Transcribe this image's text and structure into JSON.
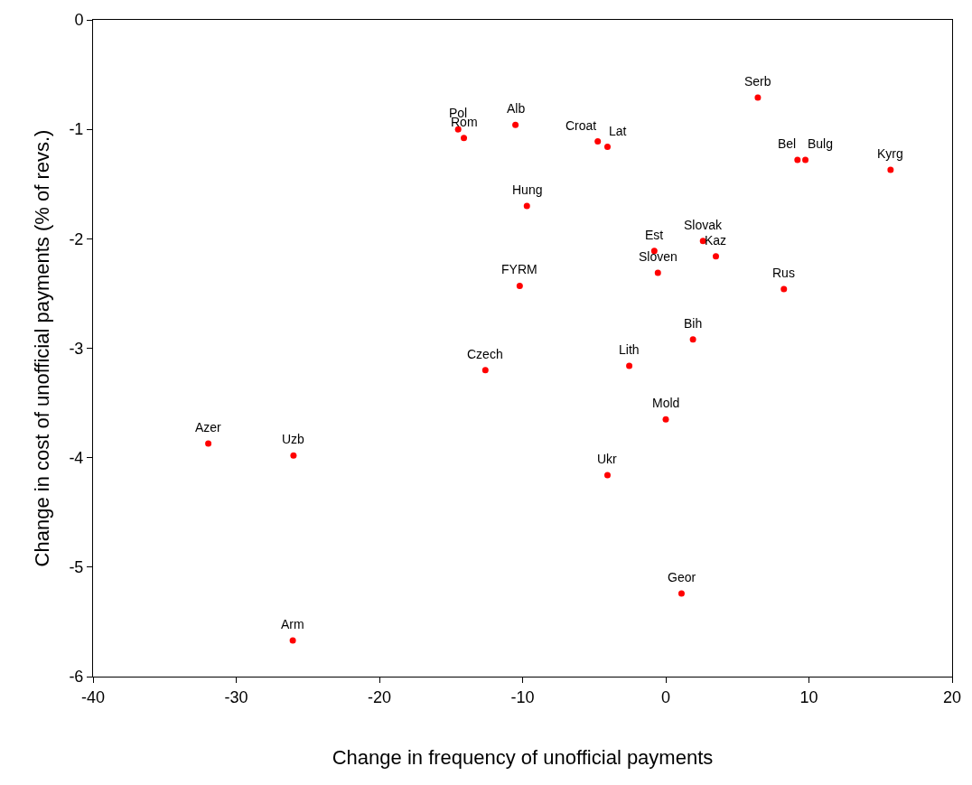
{
  "chart_data": {
    "type": "scatter",
    "xlabel": "Change in frequency of unofficial payments",
    "ylabel": "Change in cost of unofficial payments (% of revs.)",
    "x": [
      -14.5,
      -14.1,
      -10.5,
      -4.75,
      -4.07,
      6.43,
      9.2,
      9.75,
      15.7,
      -9.7,
      -0.8,
      2.6,
      3.5,
      -0.55,
      -10.2,
      8.25,
      1.9,
      -2.55,
      -12.6,
      0.0,
      -31.95,
      -26.0,
      -4.07,
      1.1,
      -26.05
    ],
    "series": [
      {
        "color": "#ff0000",
        "values": [
          -1.0,
          -1.08,
          -0.96,
          -1.11,
          -1.16,
          -0.71,
          -1.28,
          -1.28,
          -1.37,
          -1.7,
          -2.11,
          -2.02,
          -2.16,
          -2.31,
          -2.43,
          -2.46,
          -2.92,
          -3.16,
          -3.2,
          -3.65,
          -3.87,
          -3.98,
          -4.16,
          -5.24,
          -5.67
        ]
      }
    ],
    "annotations": [
      {
        "text": "Pol",
        "x": -14.5,
        "y": -1.0
      },
      {
        "text": "Rom",
        "x": -14.1,
        "y": -1.08
      },
      {
        "text": "Alb",
        "x": -10.5,
        "y": -0.96
      },
      {
        "text": "Croat",
        "x": -4.75,
        "y": -1.11
      },
      {
        "text": "Lat",
        "x": -4.07,
        "y": -1.16
      },
      {
        "text": "Serb",
        "x": 6.43,
        "y": -0.71
      },
      {
        "text": "Bel",
        "x": 9.2,
        "y": -1.28
      },
      {
        "text": "Bulg",
        "x": 9.75,
        "y": -1.28
      },
      {
        "text": "Kyrg",
        "x": 15.7,
        "y": -1.37
      },
      {
        "text": "Hung",
        "x": -9.7,
        "y": -1.7
      },
      {
        "text": "Est",
        "x": -0.8,
        "y": -2.11
      },
      {
        "text": "Slovak",
        "x": 2.6,
        "y": -2.02
      },
      {
        "text": "Kaz",
        "x": 3.5,
        "y": -2.16
      },
      {
        "text": "Sloven",
        "x": -0.55,
        "y": -2.31
      },
      {
        "text": "FYRM",
        "x": -10.2,
        "y": -2.43
      },
      {
        "text": "Rus",
        "x": 8.25,
        "y": -2.46
      },
      {
        "text": "Bih",
        "x": 1.9,
        "y": -2.92
      },
      {
        "text": "Lith",
        "x": -2.55,
        "y": -3.16
      },
      {
        "text": "Czech",
        "x": -12.6,
        "y": -3.2
      },
      {
        "text": "Mold",
        "x": 0.0,
        "y": -3.65
      },
      {
        "text": "Azer",
        "x": -31.95,
        "y": -3.87
      },
      {
        "text": "Uzb",
        "x": -26.0,
        "y": -3.98
      },
      {
        "text": "Ukr",
        "x": -4.07,
        "y": -4.16
      },
      {
        "text": "Geor",
        "x": 1.1,
        "y": -5.24
      },
      {
        "text": "Arm",
        "x": -26.05,
        "y": -5.67
      }
    ],
    "xlim": [
      -40,
      20
    ],
    "xticks": [
      -40,
      -30,
      -20,
      -10,
      0,
      10,
      20
    ],
    "ylim": [
      -6,
      0
    ],
    "yticks": [
      -6,
      -5,
      -4,
      -3,
      -2,
      -1,
      0
    ],
    "marker": "circle"
  }
}
